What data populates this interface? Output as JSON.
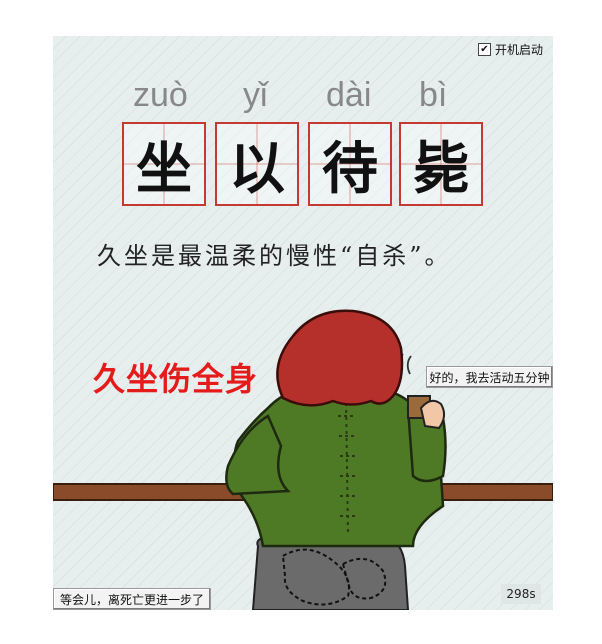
{
  "autostart": {
    "label": "开机启动",
    "checked": true,
    "check_glyph": "✔"
  },
  "idiom": {
    "pinyin": [
      "zuò",
      "yǐ",
      "dài",
      "bì"
    ],
    "characters": [
      "坐",
      "以",
      "待",
      "毙"
    ]
  },
  "slogan": "久坐是最温柔的慢性“自杀”。",
  "headline": "久坐伤全身",
  "buttons": {
    "ok": "好的，我去活动五分钟",
    "later": "等会儿，离死亡更进一步了"
  },
  "countdown": "298s",
  "colors": {
    "background": "#e7eeee",
    "box_border": "#c43a32",
    "headline": "#e51b1b",
    "hair": "#b5302b",
    "sweater": "#4f7a25",
    "desk": "#8a4b2a",
    "pants": "#6b6b6b",
    "skin": "#f2c7a8"
  }
}
